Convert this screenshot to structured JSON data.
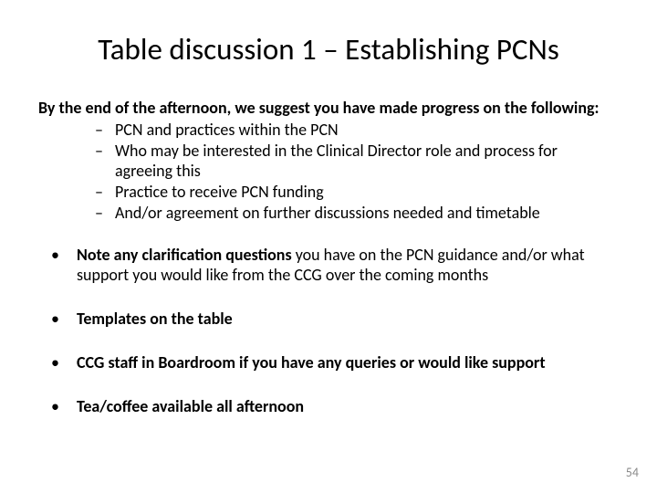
{
  "title": "Table discussion 1 – Establishing PCNs",
  "title_fontsize": 33,
  "intro": "By the end of the afternoon, we suggest you have made progress on the following:",
  "sublist": [
    "PCN and practices within the PCN",
    "Who may be interested in the Clinical Director role and process for agreeing this",
    "Practice to receive PCN funding",
    "And/or agreement on further discussions needed and timetable"
  ],
  "bullets": [
    {
      "bold_prefix": "Note any clarification questions ",
      "rest": "you have on the PCN guidance and/or what support you would like from the CCG over the coming months"
    },
    {
      "bold_prefix": "Templates on the table",
      "rest": ""
    },
    {
      "bold_prefix": "CCG staff in Boardroom if you have any queries or would like support",
      "rest": ""
    },
    {
      "bold_prefix": "Tea/coffee available all afternoon",
      "rest": ""
    }
  ],
  "body_fontsize": 18,
  "line_height": 1.22,
  "page_number": "54",
  "page_number_fontsize": 14,
  "colors": {
    "text": "#000000",
    "background": "#ffffff",
    "page_number": "#8a8a8a"
  }
}
